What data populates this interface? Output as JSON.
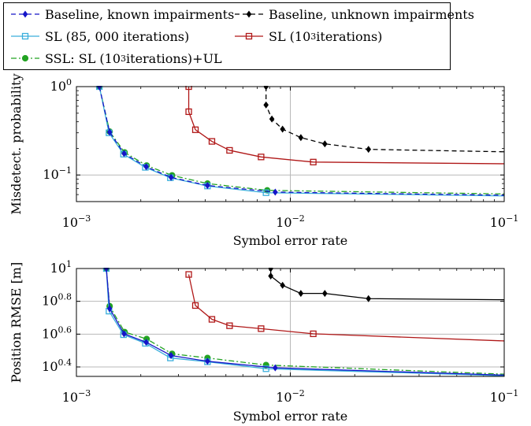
{
  "legend": {
    "items": [
      {
        "label": "Baseline, known impairments",
        "color": "#1515c8",
        "marker": "diamond",
        "dash": "6,4"
      },
      {
        "label": "Baseline, unknown impairments",
        "color": "#000000",
        "marker": "diamond",
        "dash": "6,4"
      },
      {
        "label": "SL (85, 000 iterations)",
        "color": "#3aaedc",
        "marker": "square-open",
        "dash": ""
      },
      {
        "label": "SL (10",
        "sup": "3",
        "tail": " iterations)",
        "color": "#b01818",
        "marker": "square-open",
        "dash": ""
      },
      {
        "label": "SSL: SL (10",
        "sup": "3",
        "tail": " iterations)+UL",
        "color": "#23a323",
        "marker": "circle",
        "dash": "7,3,2,3"
      }
    ]
  },
  "chart_data": [
    {
      "type": "line",
      "xscale": "log",
      "yscale": "log",
      "xlabel": "Symbol error rate",
      "ylabel": "Misdetect. probability",
      "xlim": [
        0.001,
        0.1
      ],
      "ylim": [
        0.05,
        1
      ],
      "xticks": [
        {
          "base": "10",
          "exp": "−3"
        },
        {
          "base": "10",
          "exp": "−2"
        },
        {
          "base": "10",
          "exp": "−1"
        }
      ],
      "yticks": [
        {
          "value": 0.1,
          "base": "10",
          "exp": "−1"
        },
        {
          "value": 1,
          "base": "10",
          "exp": "0"
        }
      ],
      "grid": true,
      "series": [
        {
          "name": "Baseline, unknown impairments",
          "color": "#000000",
          "dash": "6,4",
          "marker": "diamond",
          "x": [
            0.0077,
            0.0077,
            0.0082,
            0.0092,
            0.0112,
            0.0145,
            0.0232,
            0.1
          ],
          "y": [
            1.0,
            0.62,
            0.43,
            0.33,
            0.265,
            0.225,
            0.195,
            0.183
          ],
          "markers_upto": 7
        },
        {
          "name": "SL (10^3 iterations)",
          "color": "#b01818",
          "dash": "",
          "marker": "square-open",
          "x": [
            0.00335,
            0.00335,
            0.0036,
            0.0043,
            0.0052,
            0.0073,
            0.0128,
            0.1
          ],
          "y": [
            1.0,
            0.52,
            0.325,
            0.24,
            0.19,
            0.16,
            0.14,
            0.134
          ],
          "markers_upto": 7
        },
        {
          "name": "SSL: SL (10^3 iterations)+UL",
          "color": "#23a323",
          "dash": "7,3,2,3",
          "marker": "circle",
          "x": [
            0.00128,
            0.00143,
            0.00168,
            0.00213,
            0.0028,
            0.0041,
            0.0078,
            0.1
          ],
          "y": [
            1.0,
            0.31,
            0.18,
            0.128,
            0.099,
            0.08,
            0.067,
            0.061
          ],
          "markers_upto": 7
        },
        {
          "name": "SL (85, 000 iterations)",
          "color": "#3aaedc",
          "dash": "",
          "marker": "square-open",
          "x": [
            0.00128,
            0.00142,
            0.00166,
            0.0021,
            0.00275,
            0.0041,
            0.0077,
            0.1
          ],
          "y": [
            1.0,
            0.3,
            0.172,
            0.122,
            0.093,
            0.075,
            0.063,
            0.058
          ],
          "markers_upto": 7
        },
        {
          "name": "Baseline, known impairments",
          "color": "#1515c8",
          "dash": "6,4",
          "marker": "diamond",
          "x": [
            0.00128,
            0.00143,
            0.00167,
            0.00212,
            0.00277,
            0.0041,
            0.0085,
            0.1
          ],
          "y": [
            1.0,
            0.305,
            0.175,
            0.124,
            0.094,
            0.076,
            0.064,
            0.059
          ],
          "markers_upto": 7
        }
      ]
    },
    {
      "type": "line",
      "xscale": "log",
      "yscale": "log",
      "xlabel": "Symbol error rate",
      "ylabel": "Position RMSE [m]",
      "xlim": [
        0.001,
        0.1
      ],
      "ylim": [
        2.2,
        10
      ],
      "xticks": [
        {
          "base": "10",
          "exp": "−3"
        },
        {
          "base": "10",
          "exp": "−2"
        },
        {
          "base": "10",
          "exp": "−1"
        }
      ],
      "yticks": [
        {
          "value": 2.512,
          "base": "10",
          "exp": "0.4"
        },
        {
          "value": 3.981,
          "base": "10",
          "exp": "0.6"
        },
        {
          "value": 6.31,
          "base": "10",
          "exp": "0.8"
        },
        {
          "value": 10,
          "base": "10",
          "exp": "1"
        }
      ],
      "grid": true,
      "series": [
        {
          "name": "Baseline, unknown impairments",
          "color": "#000000",
          "dash": "",
          "marker": "diamond",
          "x": [
            0.0081,
            0.0081,
            0.0092,
            0.0112,
            0.0145,
            0.0232,
            0.1
          ],
          "y": [
            10.0,
            9.0,
            7.9,
            7.05,
            7.05,
            6.55,
            6.45
          ],
          "markers_upto": 6
        },
        {
          "name": "SL (10^3 iterations)",
          "color": "#b01818",
          "dash": "",
          "marker": "square-open",
          "x": [
            0.00335,
            0.0036,
            0.0043,
            0.0052,
            0.0073,
            0.0128,
            0.1
          ],
          "y": [
            9.2,
            5.95,
            4.9,
            4.48,
            4.3,
            4.0,
            3.62
          ],
          "markers_upto": 6
        },
        {
          "name": "SSL: SL (10^3 iterations)+UL",
          "color": "#23a323",
          "dash": "7,3,2,3",
          "marker": "circle",
          "x": [
            0.00138,
            0.00143,
            0.00168,
            0.00213,
            0.0028,
            0.0041,
            0.0077,
            0.1
          ],
          "y": [
            10.0,
            5.9,
            4.1,
            3.72,
            3.02,
            2.85,
            2.58,
            2.27
          ],
          "markers_upto": 7
        },
        {
          "name": "SL (85, 000 iterations)",
          "color": "#3aaedc",
          "dash": "",
          "marker": "square-open",
          "x": [
            0.00138,
            0.00142,
            0.00166,
            0.0021,
            0.00275,
            0.0041,
            0.0077,
            0.1
          ],
          "y": [
            10.0,
            5.5,
            3.95,
            3.5,
            2.85,
            2.7,
            2.45,
            2.22
          ],
          "markers_upto": 7
        },
        {
          "name": "Baseline, known impairments",
          "color": "#1515c8",
          "dash": "",
          "marker": "diamond",
          "x": [
            0.00138,
            0.00143,
            0.00167,
            0.00212,
            0.00277,
            0.0041,
            0.0085,
            0.1
          ],
          "y": [
            10.0,
            5.7,
            4.0,
            3.55,
            2.95,
            2.72,
            2.48,
            2.24
          ],
          "markers_upto": 7
        }
      ]
    }
  ]
}
